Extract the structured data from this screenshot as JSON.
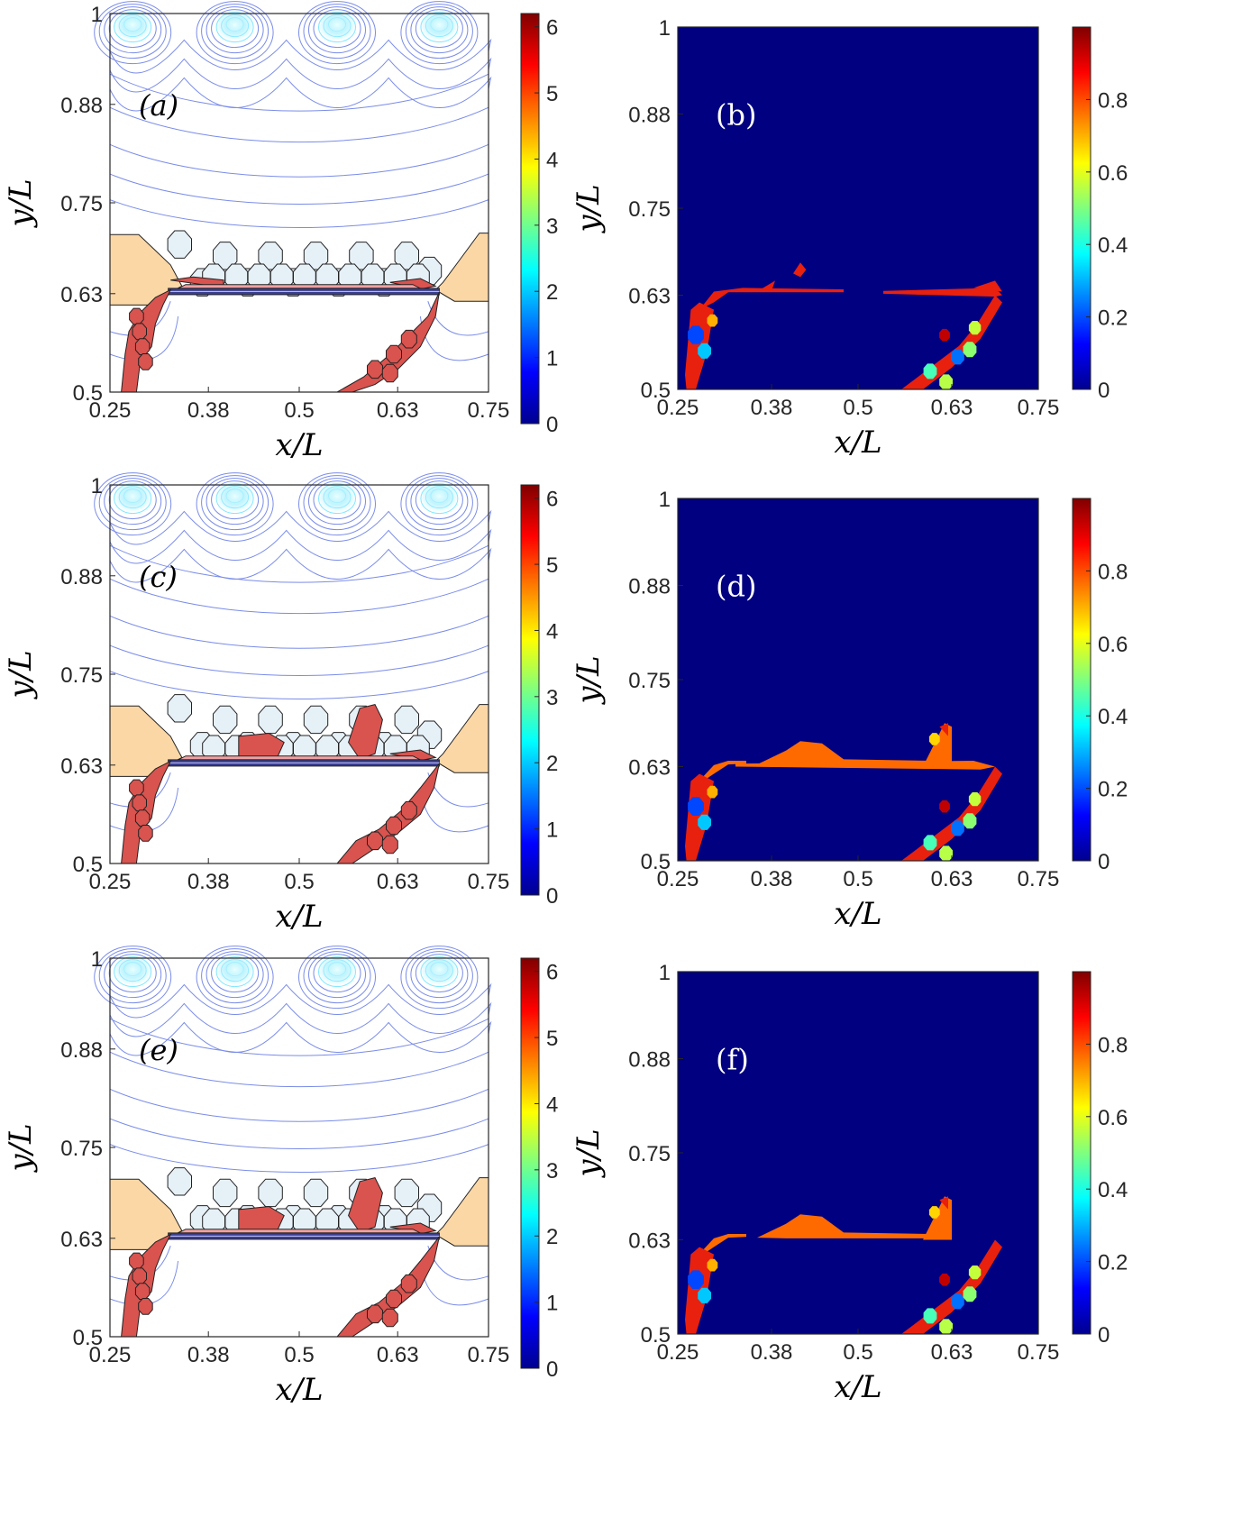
{
  "chart_data": [
    {
      "panel": "a",
      "type": "heatmap",
      "panel_label": "(a)",
      "xlabel": "x/L",
      "ylabel": "y/L",
      "xlim": [
        0.25,
        0.75
      ],
      "ylim": [
        0.5,
        1.0
      ],
      "xticks": [
        "0.25",
        "0.38",
        "0.5",
        "0.63",
        "0.75"
      ],
      "yticks": [
        "0.5",
        "0.63",
        "0.75",
        "0.88",
        "1"
      ],
      "colorbar": {
        "min": 0,
        "max": 6.2,
        "ticks": [
          "0",
          "1",
          "2",
          "3",
          "4",
          "5",
          "6"
        ],
        "colormap": "jet"
      },
      "annotations": [
        "equipotential contours with four point sources near y/L = 1",
        "horizontal electrode bar at y/L ≈ 0.63 from x/L ≈ 0.32 to 0.68",
        "orange side regions",
        "light blue grains above bar",
        "red damaged grains"
      ]
    },
    {
      "panel": "b",
      "type": "heatmap",
      "panel_label": "(b)",
      "xlabel": "x/L",
      "ylabel": "y/L",
      "xlim": [
        0.25,
        0.75
      ],
      "ylim": [
        0.5,
        1.0
      ],
      "xticks": [
        "0.25",
        "0.38",
        "0.5",
        "0.63",
        "0.75"
      ],
      "yticks": [
        "0.5",
        "0.63",
        "0.75",
        "0.88",
        "1"
      ],
      "colorbar": {
        "min": 0,
        "max": 1.0,
        "ticks": [
          "0",
          "0.2",
          "0.4",
          "0.6",
          "0.8"
        ],
        "colormap": "jet"
      },
      "background_value": 0
    },
    {
      "panel": "c",
      "type": "heatmap",
      "panel_label": "(c)",
      "xlabel": "x/L",
      "ylabel": "y/L",
      "xlim": [
        0.25,
        0.75
      ],
      "ylim": [
        0.5,
        1.0
      ],
      "xticks": [
        "0.25",
        "0.38",
        "0.5",
        "0.63",
        "0.75"
      ],
      "yticks": [
        "0.5",
        "0.63",
        "0.75",
        "0.88",
        "1"
      ],
      "colorbar": {
        "min": 0,
        "max": 6.2,
        "ticks": [
          "0",
          "1",
          "2",
          "3",
          "4",
          "5",
          "6"
        ],
        "colormap": "jet"
      }
    },
    {
      "panel": "d",
      "type": "heatmap",
      "panel_label": "(d)",
      "xlabel": "x/L",
      "ylabel": "y/L",
      "xlim": [
        0.25,
        0.75
      ],
      "ylim": [
        0.5,
        1.0
      ],
      "xticks": [
        "0.25",
        "0.38",
        "0.5",
        "0.63",
        "0.75"
      ],
      "yticks": [
        "0.5",
        "0.63",
        "0.75",
        "0.88",
        "1"
      ],
      "colorbar": {
        "min": 0,
        "max": 1.0,
        "ticks": [
          "0",
          "0.2",
          "0.4",
          "0.6",
          "0.8"
        ],
        "colormap": "jet"
      },
      "background_value": 0
    },
    {
      "panel": "e",
      "type": "heatmap",
      "panel_label": "(e)",
      "xlabel": "x/L",
      "ylabel": "y/L",
      "xlim": [
        0.25,
        0.75
      ],
      "ylim": [
        0.5,
        1.0
      ],
      "xticks": [
        "0.25",
        "0.38",
        "0.5",
        "0.63",
        "0.75"
      ],
      "yticks": [
        "0.5",
        "0.63",
        "0.75",
        "0.88",
        "1"
      ],
      "colorbar": {
        "min": 0,
        "max": 6.2,
        "ticks": [
          "0",
          "1",
          "2",
          "3",
          "4",
          "5",
          "6"
        ],
        "colormap": "jet"
      }
    },
    {
      "panel": "f",
      "type": "heatmap",
      "panel_label": "(f)",
      "xlabel": "x/L",
      "ylabel": "y/L",
      "xlim": [
        0.25,
        0.75
      ],
      "ylim": [
        0.5,
        1.0
      ],
      "xticks": [
        "0.25",
        "0.38",
        "0.5",
        "0.63",
        "0.75"
      ],
      "yticks": [
        "0.5",
        "0.63",
        "0.75",
        "0.88",
        "1"
      ],
      "colorbar": {
        "min": 0,
        "max": 1.0,
        "ticks": [
          "0",
          "0.2",
          "0.4",
          "0.6",
          "0.8"
        ],
        "colormap": "jet"
      },
      "background_value": 0
    }
  ],
  "colors": {
    "contour": "#7a8ce8",
    "contour_source": "#7fe6ff",
    "orange_region": "#fbd7a6",
    "light_grain": "#e6f0f7",
    "damage_red": "#d9534f",
    "damage_pink": "#f1a0a0",
    "bar": "#3b3f8f",
    "dark_blue": "#000080",
    "damage_orange": "#ff6a00",
    "damage_red_b": "#e8200e"
  }
}
